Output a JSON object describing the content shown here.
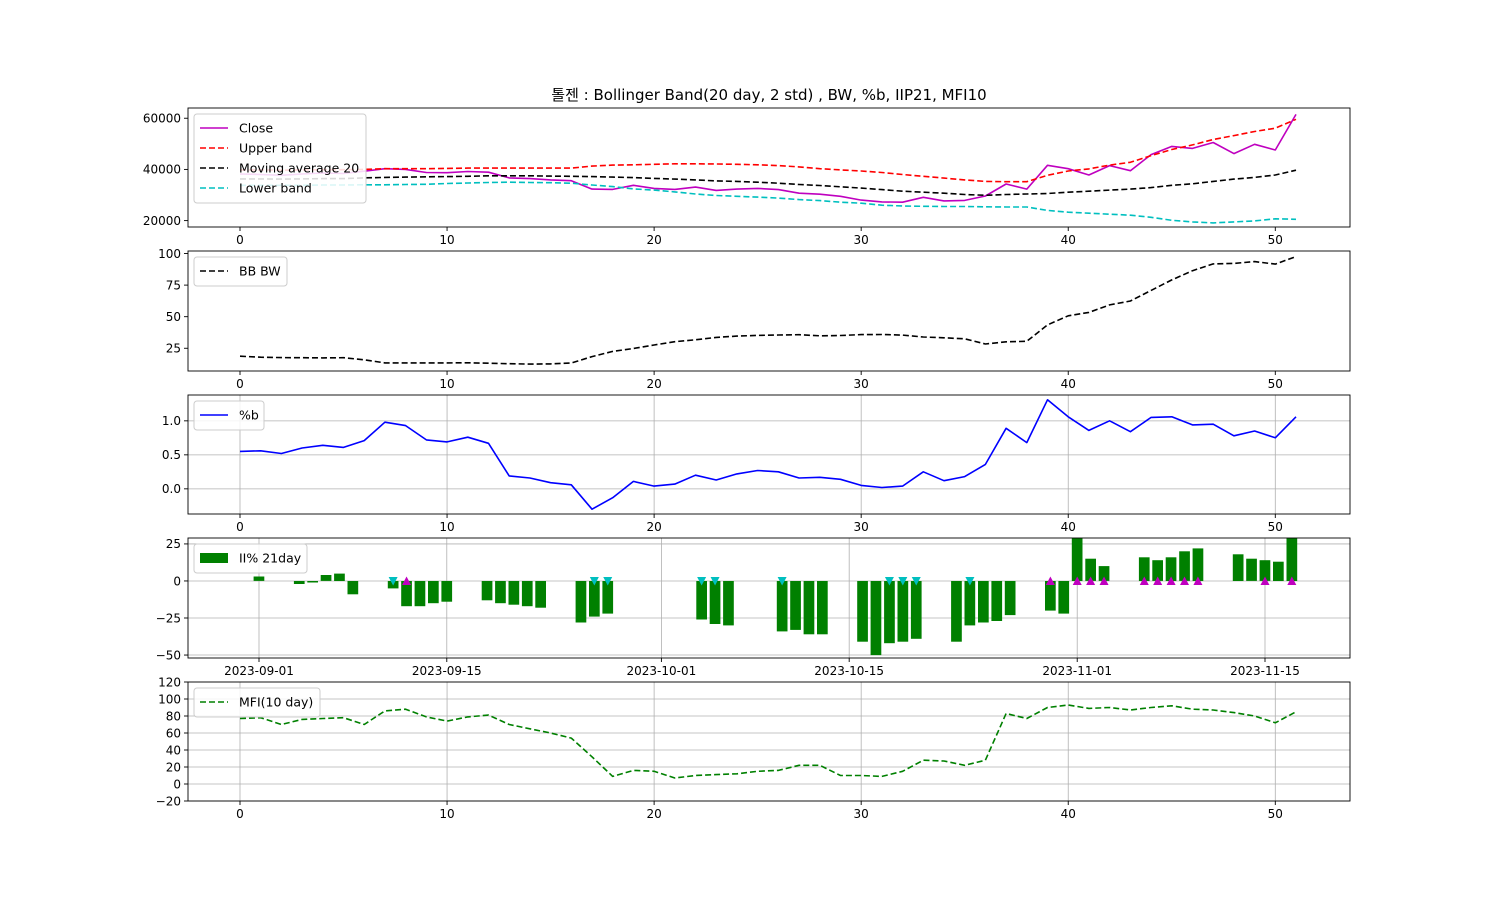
{
  "figure": {
    "title": "톨젠 : Bollinger Band(20 day, 2 std) , BW, %b, IIP21, MFI10"
  },
  "colors": {
    "close": "#bf00bf",
    "upper": "#ff0000",
    "ma": "#000000",
    "lower": "#00bfbf",
    "bw": "#000000",
    "pb": "#0000ff",
    "iip_bar": "#008000",
    "mfi": "#008000",
    "buy_marker": "#bf00bf",
    "sell_marker": "#00bfbf",
    "grid": "#b0b0b0"
  },
  "chart_data": [
    {
      "type": "line",
      "name": "bollinger",
      "x": [
        0,
        1,
        2,
        3,
        4,
        5,
        6,
        7,
        8,
        9,
        10,
        11,
        12,
        13,
        14,
        15,
        16,
        17,
        18,
        19,
        20,
        21,
        22,
        23,
        24,
        25,
        26,
        27,
        28,
        29,
        30,
        31,
        32,
        33,
        34,
        35,
        36,
        37,
        38,
        39,
        40,
        41,
        42,
        43,
        44,
        45,
        46,
        47,
        48,
        49,
        50,
        51
      ],
      "series": [
        {
          "key": "close",
          "name": "Close",
          "values": [
            38200,
            38000,
            37700,
            38200,
            38600,
            38400,
            39300,
            40300,
            40000,
            38800,
            38700,
            39200,
            38900,
            36700,
            36400,
            35900,
            35600,
            32300,
            32200,
            33800,
            32600,
            32200,
            33100,
            31800,
            32300,
            32600,
            32100,
            30700,
            30300,
            29500,
            28000,
            27300,
            27200,
            29100,
            27700,
            27900,
            29600,
            34300,
            32300,
            41600,
            40300,
            37800,
            41500,
            39500,
            45800,
            49000,
            48200,
            50500,
            46200,
            49800,
            47600,
            61500
          ]
        },
        {
          "key": "upper",
          "name": "Upper band",
          "values": [
            39800,
            39800,
            39700,
            39800,
            39900,
            39900,
            40000,
            40300,
            40300,
            40300,
            40400,
            40500,
            40500,
            40500,
            40500,
            40500,
            40500,
            41300,
            41700,
            41800,
            42000,
            42200,
            42200,
            42100,
            42000,
            41800,
            41500,
            41000,
            40300,
            39800,
            39400,
            38800,
            38000,
            37300,
            36600,
            35900,
            35300,
            35200,
            35200,
            37700,
            39400,
            40200,
            41700,
            42800,
            45400,
            47800,
            49600,
            51700,
            53200,
            54800,
            56100,
            59600
          ]
        },
        {
          "key": "ma",
          "name": "Moving average 20",
          "values": [
            36300,
            36300,
            36200,
            36300,
            36400,
            36400,
            36700,
            36900,
            37000,
            37100,
            37200,
            37300,
            37500,
            37500,
            37500,
            37400,
            37300,
            37200,
            37000,
            36800,
            36500,
            36200,
            35900,
            35500,
            35300,
            35000,
            34600,
            34100,
            33700,
            33200,
            32700,
            32100,
            31500,
            31100,
            30700,
            30200,
            29900,
            30200,
            30400,
            30600,
            31100,
            31500,
            31900,
            32300,
            32900,
            33800,
            34400,
            35300,
            36200,
            36900,
            37800,
            39700
          ]
        },
        {
          "key": "lower",
          "name": "Lower band",
          "values": [
            33800,
            33800,
            33800,
            33800,
            33900,
            33900,
            34000,
            34000,
            34100,
            34200,
            34500,
            34700,
            34900,
            35000,
            34900,
            34800,
            34600,
            33900,
            33300,
            32400,
            31900,
            31200,
            30400,
            29800,
            29500,
            29200,
            28800,
            28200,
            27800,
            27200,
            26800,
            26000,
            25700,
            25600,
            25500,
            25500,
            25400,
            25300,
            25300,
            24000,
            23300,
            22900,
            22500,
            22100,
            21300,
            20100,
            19500,
            19100,
            19500,
            19900,
            20700,
            20500
          ]
        }
      ],
      "ylim": [
        17500,
        64000
      ],
      "yticks": [
        "20000",
        "40000",
        "60000"
      ],
      "xticks": [
        "0",
        "10",
        "20",
        "30",
        "40",
        "50"
      ],
      "legend": "upper-left"
    },
    {
      "type": "line",
      "name": "bandwidth",
      "x": [
        0,
        1,
        2,
        3,
        4,
        5,
        6,
        7,
        8,
        9,
        10,
        11,
        12,
        13,
        14,
        15,
        16,
        17,
        18,
        19,
        20,
        21,
        22,
        23,
        24,
        25,
        26,
        27,
        28,
        29,
        30,
        31,
        32,
        33,
        34,
        35,
        36,
        37,
        38,
        39,
        40,
        41,
        42,
        43,
        44,
        45,
        46,
        47,
        48,
        49,
        50,
        51
      ],
      "series": [
        {
          "key": "bw",
          "name": "BB BW",
          "values": [
            18.7,
            17.9,
            17.6,
            17.5,
            17.4,
            17.5,
            15.9,
            13.4,
            13.4,
            13.4,
            13.4,
            13.5,
            13.2,
            12.8,
            12.5,
            12.6,
            13.3,
            18.4,
            22.5,
            24.8,
            27.6,
            30.2,
            31.7,
            33.6,
            34.6,
            35.2,
            35.5,
            35.7,
            34.9,
            35.1,
            35.8,
            35.9,
            35.4,
            33.9,
            33.3,
            32.5,
            28.4,
            30.1,
            30.5,
            43.5,
            50.7,
            53.4,
            59.3,
            62.4,
            70.8,
            79.1,
            86.4,
            91.8,
            92.2,
            93.6,
            91.6,
            97.6
          ]
        }
      ],
      "ylim": [
        7,
        102
      ],
      "yticks": [
        "25",
        "50",
        "75",
        "100"
      ],
      "xticks": [
        "0",
        "10",
        "20",
        "30",
        "40",
        "50"
      ],
      "legend": "upper-left"
    },
    {
      "type": "line",
      "name": "percent_b",
      "x": [
        0,
        1,
        2,
        3,
        4,
        5,
        6,
        7,
        8,
        9,
        10,
        11,
        12,
        13,
        14,
        15,
        16,
        17,
        18,
        19,
        20,
        21,
        22,
        23,
        24,
        25,
        26,
        27,
        28,
        29,
        30,
        31,
        32,
        33,
        34,
        35,
        36,
        37,
        38,
        39,
        40,
        41,
        42,
        43,
        44,
        45,
        46,
        47,
        48,
        49,
        50,
        51
      ],
      "series": [
        {
          "key": "pb",
          "name": "%b",
          "values": [
            0.55,
            0.56,
            0.52,
            0.6,
            0.64,
            0.61,
            0.71,
            0.98,
            0.93,
            0.72,
            0.69,
            0.76,
            0.67,
            0.19,
            0.16,
            0.09,
            0.06,
            -0.3,
            -0.13,
            0.11,
            0.04,
            0.07,
            0.2,
            0.13,
            0.22,
            0.27,
            0.25,
            0.16,
            0.17,
            0.14,
            0.05,
            0.02,
            0.04,
            0.25,
            0.12,
            0.18,
            0.36,
            0.89,
            0.68,
            1.31,
            1.06,
            0.86,
            1.0,
            0.84,
            1.05,
            1.06,
            0.94,
            0.95,
            0.78,
            0.85,
            0.75,
            1.06
          ]
        }
      ],
      "ylim": [
        -0.37,
        1.38
      ],
      "yticks": [
        "0.0",
        "0.5",
        "1.0"
      ],
      "xticks": [
        "0",
        "10",
        "20",
        "30",
        "40",
        "50"
      ],
      "grid": true,
      "legend": "upper-left"
    },
    {
      "type": "bar",
      "name": "iip21",
      "x": [
        "2023-09-01",
        "2023-09-04",
        "2023-09-05",
        "2023-09-06",
        "2023-09-07",
        "2023-09-08",
        "2023-09-11",
        "2023-09-12",
        "2023-09-13",
        "2023-09-14",
        "2023-09-15",
        "2023-09-18",
        "2023-09-19",
        "2023-09-20",
        "2023-09-21",
        "2023-09-22",
        "2023-09-25",
        "2023-09-26",
        "2023-09-27",
        "2023-10-04",
        "2023-10-05",
        "2023-10-06",
        "2023-10-10",
        "2023-10-11",
        "2023-10-12",
        "2023-10-13",
        "2023-10-16",
        "2023-10-17",
        "2023-10-18",
        "2023-10-19",
        "2023-10-20",
        "2023-10-23",
        "2023-10-24",
        "2023-10-25",
        "2023-10-26",
        "2023-10-27",
        "2023-10-30",
        "2023-10-31",
        "2023-11-01",
        "2023-11-02",
        "2023-11-03",
        "2023-11-06",
        "2023-11-07",
        "2023-11-08",
        "2023-11-09",
        "2023-11-10",
        "2023-11-13",
        "2023-11-14",
        "2023-11-15",
        "2023-11-16",
        "2023-11-17"
      ],
      "series": [
        {
          "key": "iip",
          "name": "II% 21day",
          "values": [
            3,
            -2,
            -1,
            4,
            5,
            -9,
            -5,
            -17,
            -17,
            -15,
            -14,
            -13,
            -15,
            -16,
            -17,
            -18,
            -28,
            -24,
            -22,
            -26,
            -29,
            -30,
            -34,
            -33,
            -36,
            -36,
            -41,
            -50,
            -42,
            -41,
            -39,
            -41,
            -30,
            -28,
            -27,
            -23,
            -20,
            -22,
            29,
            15,
            10,
            16,
            14,
            16,
            20,
            22,
            18,
            15,
            14,
            13,
            29
          ]
        }
      ],
      "buy_markers": [
        "2023-09-12",
        "2023-10-30",
        "2023-11-01",
        "2023-11-02",
        "2023-11-03",
        "2023-11-06",
        "2023-11-07",
        "2023-11-08",
        "2023-11-09",
        "2023-11-10",
        "2023-11-15",
        "2023-11-17"
      ],
      "sell_markers": [
        "2023-09-11",
        "2023-09-26",
        "2023-09-27",
        "2023-10-04",
        "2023-10-05",
        "2023-10-10",
        "2023-10-18",
        "2023-10-19",
        "2023-10-20",
        "2023-10-24"
      ],
      "ylim": [
        -52,
        29
      ],
      "yticks": [
        "−50",
        "−25",
        "0",
        "25"
      ],
      "xticks": [
        "2023-09-01",
        "2023-09-15",
        "2023-10-01",
        "2023-10-15",
        "2023-11-01",
        "2023-11-15"
      ],
      "grid": true,
      "legend": "upper-left"
    },
    {
      "type": "line",
      "name": "mfi",
      "x": [
        0,
        1,
        2,
        3,
        4,
        5,
        6,
        7,
        8,
        9,
        10,
        11,
        12,
        13,
        14,
        15,
        16,
        17,
        18,
        19,
        20,
        21,
        22,
        23,
        24,
        25,
        26,
        27,
        28,
        29,
        30,
        31,
        32,
        33,
        34,
        35,
        36,
        37,
        38,
        39,
        40,
        41,
        42,
        43,
        44,
        45,
        46,
        47,
        48,
        49,
        50,
        51
      ],
      "series": [
        {
          "key": "mfi",
          "name": "MFI(10 day)",
          "values": [
            77,
            78,
            70,
            76,
            77,
            78,
            70,
            86,
            88,
            79,
            74,
            79,
            81,
            70,
            65,
            60,
            54,
            32,
            9,
            16,
            15,
            7,
            10,
            11,
            12,
            15,
            16,
            22,
            22,
            10,
            10,
            9,
            15,
            28,
            27,
            22,
            28,
            83,
            77,
            90,
            93,
            89,
            90,
            87,
            90,
            92,
            88,
            87,
            84,
            80,
            72,
            85
          ]
        }
      ],
      "ylim": [
        -20,
        120
      ],
      "yticks": [
        "−20",
        "0",
        "20",
        "40",
        "60",
        "80",
        "100",
        "120"
      ],
      "xticks": [
        "0",
        "10",
        "20",
        "30",
        "40",
        "50"
      ],
      "grid": true,
      "legend": "upper-left"
    }
  ]
}
